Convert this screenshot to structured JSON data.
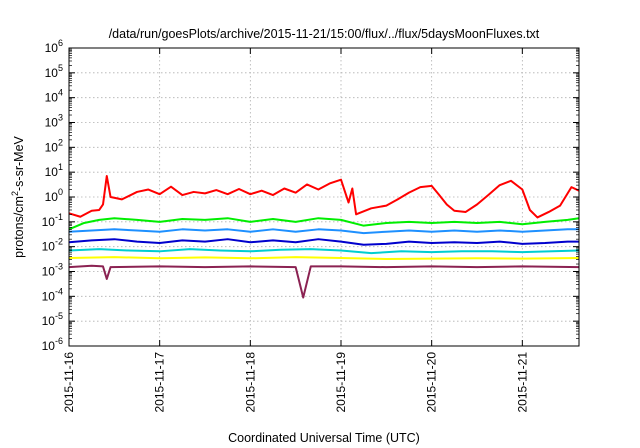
{
  "chart_data": {
    "type": "line",
    "title": "/data/run/goesPlots/archive/2015-11-21/15:00/flux/../flux/5daysMoonFluxes.txt",
    "xlabel": "Coordinated Universal Time (UTC)",
    "ylabel_parts": {
      "base": "protons/cm",
      "sup": "2",
      "rest": "-s-sr-MeV"
    },
    "y_scale": "log",
    "ylim": [
      1e-06,
      1000000.0
    ],
    "y_ticks": [
      {
        "exp": "-6",
        "value": 1e-06
      },
      {
        "exp": "-5",
        "value": 1e-05
      },
      {
        "exp": "-4",
        "value": 0.0001
      },
      {
        "exp": "-3",
        "value": 0.001
      },
      {
        "exp": "-2",
        "value": 0.01
      },
      {
        "exp": "-1",
        "value": 0.1
      },
      {
        "exp": "0",
        "value": 1
      },
      {
        "exp": "1",
        "value": 10
      },
      {
        "exp": "2",
        "value": 100
      },
      {
        "exp": "3",
        "value": 1000
      },
      {
        "exp": "4",
        "value": 10000
      },
      {
        "exp": "5",
        "value": 100000
      },
      {
        "exp": "6",
        "value": 1000000
      }
    ],
    "y_tick_base": "10",
    "xlim": [
      "2015-11-16",
      "2015-11-21T15:00"
    ],
    "x_ticks": [
      "2015-11-16",
      "2015-11-17",
      "2015-11-18",
      "2015-11-19",
      "2015-11-20",
      "2015-11-21"
    ],
    "grid": true,
    "series": [
      {
        "color": "#ff0000",
        "points": [
          [
            "2015-11-16T00:00",
            0.22
          ],
          [
            "2015-11-16T03:00",
            0.16
          ],
          [
            "2015-11-16T06:00",
            0.28
          ],
          [
            "2015-11-16T08:00",
            0.3
          ],
          [
            "2015-11-16T09:00",
            0.5
          ],
          [
            "2015-11-16T10:00",
            7.0
          ],
          [
            "2015-11-16T11:00",
            1.0
          ],
          [
            "2015-11-16T14:00",
            0.8
          ],
          [
            "2015-11-16T18:00",
            1.6
          ],
          [
            "2015-11-16T21:00",
            2.0
          ],
          [
            "2015-11-17T00:00",
            1.3
          ],
          [
            "2015-11-17T03:00",
            2.6
          ],
          [
            "2015-11-17T06:00",
            1.2
          ],
          [
            "2015-11-17T09:00",
            1.6
          ],
          [
            "2015-11-17T12:00",
            1.4
          ],
          [
            "2015-11-17T15:00",
            1.9
          ],
          [
            "2015-11-17T18:00",
            1.3
          ],
          [
            "2015-11-17T21:00",
            2.1
          ],
          [
            "2015-11-18T00:00",
            1.3
          ],
          [
            "2015-11-18T03:00",
            1.8
          ],
          [
            "2015-11-18T06:00",
            1.2
          ],
          [
            "2015-11-18T09:00",
            2.2
          ],
          [
            "2015-11-18T12:00",
            1.5
          ],
          [
            "2015-11-18T15:00",
            3.2
          ],
          [
            "2015-11-18T18:00",
            2.0
          ],
          [
            "2015-11-18T21:00",
            3.5
          ],
          [
            "2015-11-19T00:00",
            5.0
          ],
          [
            "2015-11-19T02:00",
            0.6
          ],
          [
            "2015-11-19T03:00",
            2.2
          ],
          [
            "2015-11-19T04:00",
            0.2
          ],
          [
            "2015-11-19T08:00",
            0.35
          ],
          [
            "2015-11-19T12:00",
            0.45
          ],
          [
            "2015-11-19T15:00",
            0.8
          ],
          [
            "2015-11-19T18:00",
            1.5
          ],
          [
            "2015-11-19T21:00",
            2.5
          ],
          [
            "2015-11-20T00:00",
            2.8
          ],
          [
            "2015-11-20T02:00",
            1.2
          ],
          [
            "2015-11-20T04:00",
            0.5
          ],
          [
            "2015-11-20T06:00",
            0.28
          ],
          [
            "2015-11-20T09:00",
            0.25
          ],
          [
            "2015-11-20T12:00",
            0.5
          ],
          [
            "2015-11-20T15:00",
            1.2
          ],
          [
            "2015-11-20T18:00",
            3.0
          ],
          [
            "2015-11-20T21:00",
            4.5
          ],
          [
            "2015-11-21T00:00",
            2.0
          ],
          [
            "2015-11-21T02:00",
            0.3
          ],
          [
            "2015-11-21T04:00",
            0.15
          ],
          [
            "2015-11-21T07:00",
            0.25
          ],
          [
            "2015-11-21T10:00",
            0.45
          ],
          [
            "2015-11-21T13:00",
            2.5
          ],
          [
            "2015-11-21T15:00",
            1.8
          ]
        ]
      },
      {
        "color": "#00ee00",
        "points": [
          [
            "2015-11-16T00:00",
            0.05
          ],
          [
            "2015-11-16T04:00",
            0.09
          ],
          [
            "2015-11-16T08:00",
            0.12
          ],
          [
            "2015-11-16T12:00",
            0.14
          ],
          [
            "2015-11-16T18:00",
            0.12
          ],
          [
            "2015-11-17T00:00",
            0.1
          ],
          [
            "2015-11-17T06:00",
            0.13
          ],
          [
            "2015-11-17T12:00",
            0.12
          ],
          [
            "2015-11-17T18:00",
            0.14
          ],
          [
            "2015-11-18T00:00",
            0.1
          ],
          [
            "2015-11-18T06:00",
            0.13
          ],
          [
            "2015-11-18T12:00",
            0.1
          ],
          [
            "2015-11-18T18:00",
            0.14
          ],
          [
            "2015-11-19T00:00",
            0.12
          ],
          [
            "2015-11-19T06:00",
            0.07
          ],
          [
            "2015-11-19T12:00",
            0.09
          ],
          [
            "2015-11-19T18:00",
            0.1
          ],
          [
            "2015-11-20T00:00",
            0.09
          ],
          [
            "2015-11-20T06:00",
            0.1
          ],
          [
            "2015-11-20T12:00",
            0.09
          ],
          [
            "2015-11-20T18:00",
            0.1
          ],
          [
            "2015-11-21T00:00",
            0.08
          ],
          [
            "2015-11-21T06:00",
            0.1
          ],
          [
            "2015-11-21T12:00",
            0.12
          ],
          [
            "2015-11-21T15:00",
            0.14
          ]
        ]
      },
      {
        "color": "#1e90ff",
        "points": [
          [
            "2015-11-16T00:00",
            0.04
          ],
          [
            "2015-11-16T06:00",
            0.045
          ],
          [
            "2015-11-16T12:00",
            0.05
          ],
          [
            "2015-11-16T18:00",
            0.045
          ],
          [
            "2015-11-17T00:00",
            0.04
          ],
          [
            "2015-11-17T06:00",
            0.05
          ],
          [
            "2015-11-17T12:00",
            0.045
          ],
          [
            "2015-11-17T18:00",
            0.05
          ],
          [
            "2015-11-18T00:00",
            0.04
          ],
          [
            "2015-11-18T06:00",
            0.05
          ],
          [
            "2015-11-18T12:00",
            0.04
          ],
          [
            "2015-11-18T18:00",
            0.05
          ],
          [
            "2015-11-19T00:00",
            0.045
          ],
          [
            "2015-11-19T06:00",
            0.035
          ],
          [
            "2015-11-19T12:00",
            0.04
          ],
          [
            "2015-11-19T18:00",
            0.045
          ],
          [
            "2015-11-20T00:00",
            0.04
          ],
          [
            "2015-11-20T06:00",
            0.045
          ],
          [
            "2015-11-20T12:00",
            0.04
          ],
          [
            "2015-11-20T18:00",
            0.045
          ],
          [
            "2015-11-21T00:00",
            0.04
          ],
          [
            "2015-11-21T06:00",
            0.045
          ],
          [
            "2015-11-21T12:00",
            0.05
          ],
          [
            "2015-11-21T15:00",
            0.05
          ]
        ]
      },
      {
        "color": "#0000cd",
        "points": [
          [
            "2015-11-16T00:00",
            0.015
          ],
          [
            "2015-11-16T06:00",
            0.018
          ],
          [
            "2015-11-16T12:00",
            0.02
          ],
          [
            "2015-11-16T18:00",
            0.016
          ],
          [
            "2015-11-17T00:00",
            0.014
          ],
          [
            "2015-11-17T06:00",
            0.018
          ],
          [
            "2015-11-17T12:00",
            0.016
          ],
          [
            "2015-11-17T18:00",
            0.02
          ],
          [
            "2015-11-18T00:00",
            0.015
          ],
          [
            "2015-11-18T06:00",
            0.018
          ],
          [
            "2015-11-18T12:00",
            0.015
          ],
          [
            "2015-11-18T18:00",
            0.02
          ],
          [
            "2015-11-19T00:00",
            0.016
          ],
          [
            "2015-11-19T06:00",
            0.012
          ],
          [
            "2015-11-19T12:00",
            0.013
          ],
          [
            "2015-11-19T18:00",
            0.016
          ],
          [
            "2015-11-20T00:00",
            0.014
          ],
          [
            "2015-11-20T06:00",
            0.015
          ],
          [
            "2015-11-20T12:00",
            0.014
          ],
          [
            "2015-11-20T18:00",
            0.016
          ],
          [
            "2015-11-21T00:00",
            0.013
          ],
          [
            "2015-11-21T06:00",
            0.014
          ],
          [
            "2015-11-21T12:00",
            0.016
          ],
          [
            "2015-11-21T15:00",
            0.016
          ]
        ]
      },
      {
        "color": "#00ced1",
        "points": [
          [
            "2015-11-16T00:00",
            0.007
          ],
          [
            "2015-11-16T08:00",
            0.008
          ],
          [
            "2015-11-16T16:00",
            0.007
          ],
          [
            "2015-11-17T00:00",
            0.0065
          ],
          [
            "2015-11-17T08:00",
            0.008
          ],
          [
            "2015-11-17T16:00",
            0.007
          ],
          [
            "2015-11-18T00:00",
            0.0065
          ],
          [
            "2015-11-18T08:00",
            0.0075
          ],
          [
            "2015-11-18T16:00",
            0.008
          ],
          [
            "2015-11-19T00:00",
            0.007
          ],
          [
            "2015-11-19T08:00",
            0.0055
          ],
          [
            "2015-11-19T16:00",
            0.0065
          ],
          [
            "2015-11-20T00:00",
            0.006
          ],
          [
            "2015-11-20T08:00",
            0.0065
          ],
          [
            "2015-11-20T16:00",
            0.0065
          ],
          [
            "2015-11-21T00:00",
            0.006
          ],
          [
            "2015-11-21T08:00",
            0.0065
          ],
          [
            "2015-11-21T15:00",
            0.007
          ]
        ]
      },
      {
        "color": "#ffff00",
        "points": [
          [
            "2015-11-16T00:00",
            0.0035
          ],
          [
            "2015-11-16T12:00",
            0.0038
          ],
          [
            "2015-11-17T00:00",
            0.0034
          ],
          [
            "2015-11-17T12:00",
            0.0037
          ],
          [
            "2015-11-18T00:00",
            0.0034
          ],
          [
            "2015-11-18T12:00",
            0.0038
          ],
          [
            "2015-11-19T00:00",
            0.0035
          ],
          [
            "2015-11-19T12:00",
            0.0032
          ],
          [
            "2015-11-20T00:00",
            0.0033
          ],
          [
            "2015-11-20T12:00",
            0.0034
          ],
          [
            "2015-11-21T00:00",
            0.0033
          ],
          [
            "2015-11-21T15:00",
            0.0035
          ]
        ]
      },
      {
        "color": "#8b2252",
        "points": [
          [
            "2015-11-16T00:00",
            0.0015
          ],
          [
            "2015-11-16T06:00",
            0.0017
          ],
          [
            "2015-11-16T09:00",
            0.0016
          ],
          [
            "2015-11-16T10:00",
            0.0005
          ],
          [
            "2015-11-16T11:00",
            0.0015
          ],
          [
            "2015-11-17T00:00",
            0.0016
          ],
          [
            "2015-11-17T12:00",
            0.0015
          ],
          [
            "2015-11-18T00:00",
            0.0016
          ],
          [
            "2015-11-18T12:00",
            0.0015
          ],
          [
            "2015-11-18T14:00",
            9e-05
          ],
          [
            "2015-11-18T16:00",
            0.0016
          ],
          [
            "2015-11-19T00:00",
            0.0016
          ],
          [
            "2015-11-19T12:00",
            0.0015
          ],
          [
            "2015-11-20T00:00",
            0.0016
          ],
          [
            "2015-11-20T12:00",
            0.0015
          ],
          [
            "2015-11-21T00:00",
            0.0016
          ],
          [
            "2015-11-21T15:00",
            0.0015
          ]
        ]
      }
    ]
  }
}
